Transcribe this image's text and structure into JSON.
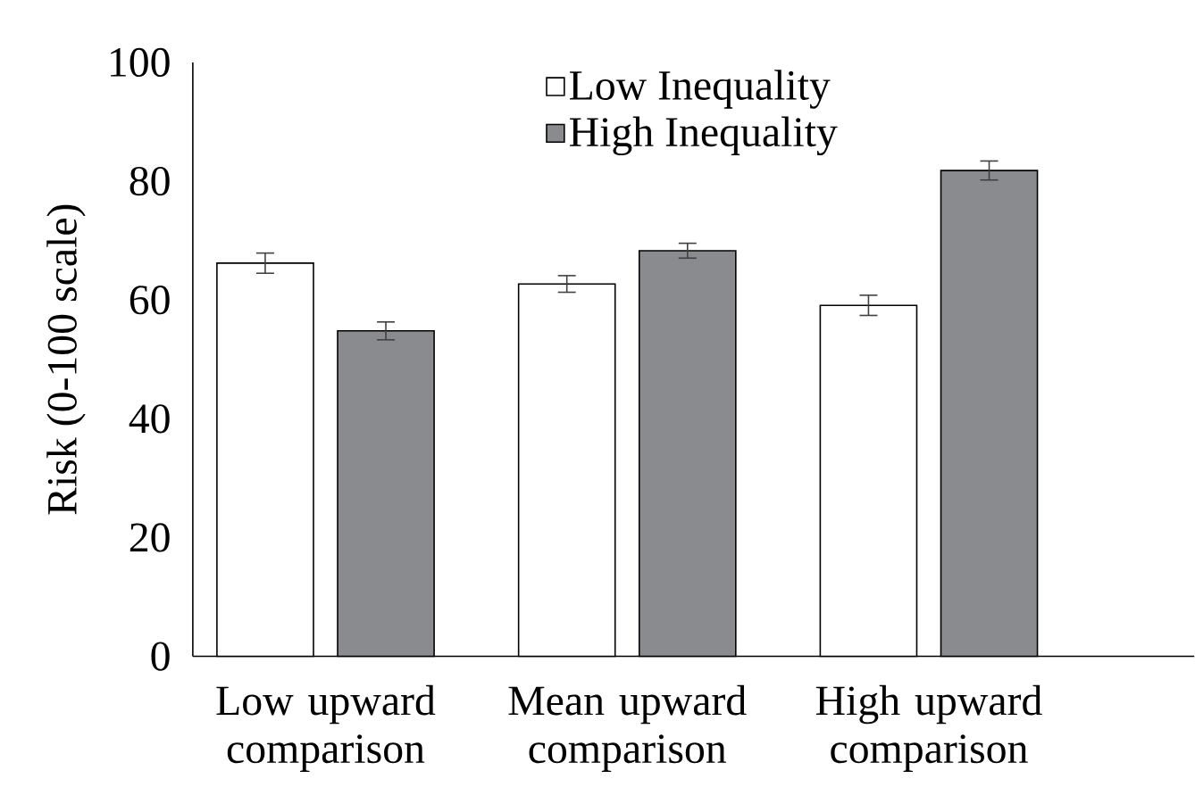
{
  "chart_data": {
    "type": "bar",
    "ylabel": "Risk (0-100 scale)",
    "categories": [
      "Low upward comparison",
      "Mean upward comparison",
      "High upward comparison"
    ],
    "series": [
      {
        "name": "Low Inequality",
        "color": "#ffffff",
        "values": [
          66.2,
          62.7,
          59.1
        ],
        "errors": [
          1.7,
          1.4,
          1.7
        ]
      },
      {
        "name": "High Inequality",
        "color": "#8a8b8e",
        "values": [
          54.8,
          68.3,
          81.8
        ],
        "errors": [
          1.5,
          1.25,
          1.6
        ]
      }
    ],
    "ylim": [
      0,
      100
    ],
    "yticks": [
      0,
      20,
      40,
      60,
      80,
      100
    ],
    "legend": "top"
  }
}
